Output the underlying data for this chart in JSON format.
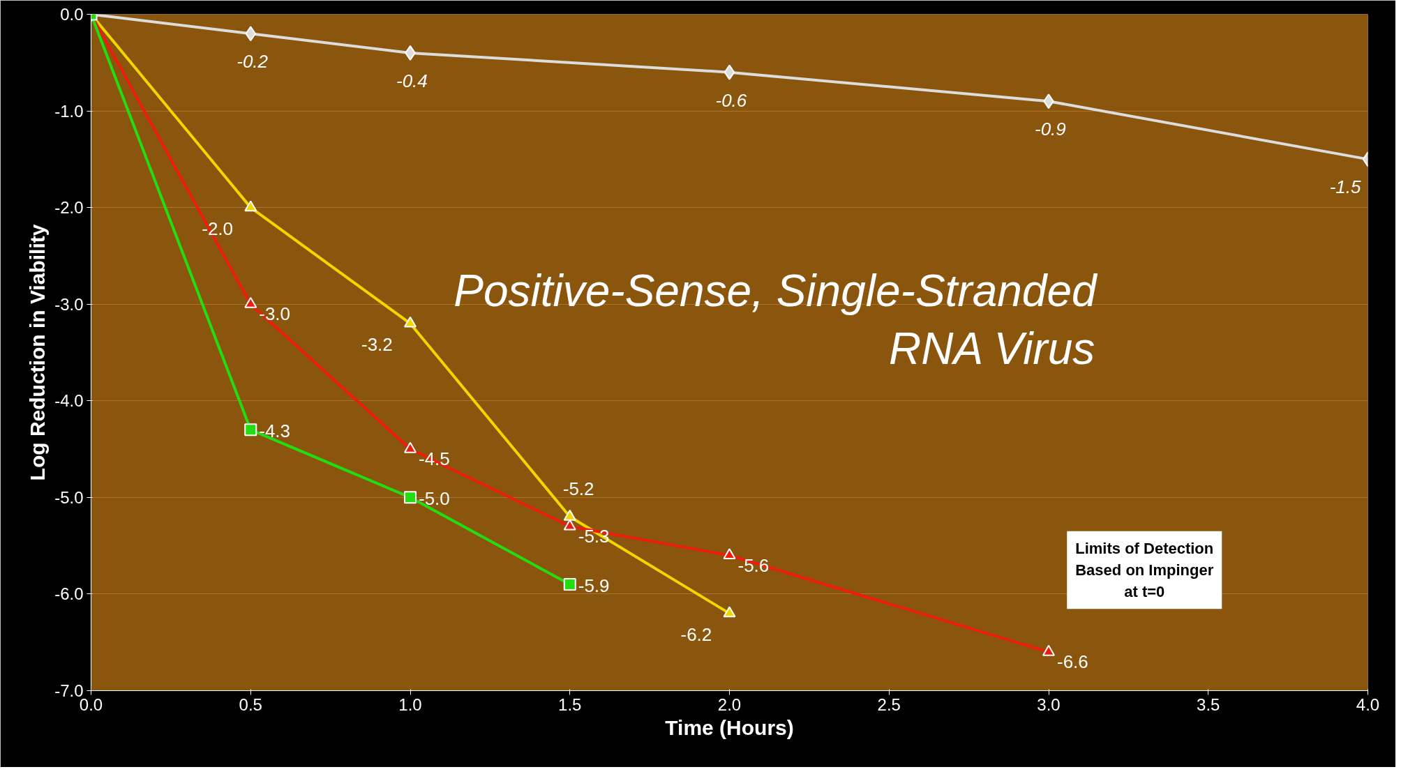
{
  "chart_data": {
    "type": "line",
    "xlabel": "Time (Hours)",
    "ylabel": "Log Reduction in Viability",
    "xlim": [
      0,
      4
    ],
    "ylim": [
      -7,
      0
    ],
    "xticks": [
      {
        "value": 0,
        "label": "0.0"
      },
      {
        "value": 0.5,
        "label": "0.5"
      },
      {
        "value": 1,
        "label": "1.0"
      },
      {
        "value": 1.5,
        "label": "1.5"
      },
      {
        "value": 2,
        "label": "2.0"
      },
      {
        "value": 2.5,
        "label": "2.5"
      },
      {
        "value": 3,
        "label": "3.0"
      },
      {
        "value": 3.5,
        "label": "3.5"
      },
      {
        "value": 4,
        "label": "4.0"
      }
    ],
    "yticks": [
      {
        "value": 0,
        "label": "0.0"
      },
      {
        "value": -1,
        "label": "-1.0"
      },
      {
        "value": -2,
        "label": "-2.0"
      },
      {
        "value": -3,
        "label": "-3.0"
      },
      {
        "value": -4,
        "label": "-4.0"
      },
      {
        "value": -5,
        "label": "-5.0"
      },
      {
        "value": -6,
        "label": "-6.0"
      },
      {
        "value": -7,
        "label": "-7.0"
      }
    ],
    "grid": "y",
    "series": [
      {
        "color": "#dddddd",
        "marker": "diamond",
        "x": [
          0,
          0.5,
          1,
          2,
          3,
          4
        ],
        "values": [
          0,
          -0.2,
          -0.4,
          -0.6,
          -0.9,
          -1.5
        ],
        "value_labels": [
          null,
          "-0.2",
          "-0.4",
          "-0.6",
          "-0.9",
          "-1.5"
        ]
      },
      {
        "color": "#f2d600",
        "marker": "triangle",
        "x": [
          0,
          0.5,
          1,
          1.5,
          2
        ],
        "values": [
          0,
          -2.0,
          -3.2,
          -5.2,
          -6.2
        ],
        "value_labels": [
          null,
          "-2.0",
          "-3.2",
          "-5.2",
          "-6.2"
        ]
      },
      {
        "color": "#ee1c0c",
        "marker": "triangle",
        "x": [
          0,
          0.5,
          1,
          1.5,
          2,
          3
        ],
        "values": [
          0,
          -3.0,
          -4.5,
          -5.3,
          -5.6,
          -6.6
        ],
        "value_labels": [
          null,
          "-3.0",
          "-4.5",
          "-5.3",
          "-5.6",
          "-6.6"
        ]
      },
      {
        "color": "#22dd11",
        "marker": "square",
        "x": [
          0,
          0.5,
          1,
          1.5
        ],
        "values": [
          0,
          -4.3,
          -5.0,
          -5.9
        ],
        "value_labels": [
          null,
          "-4.3",
          "-5.0",
          "-5.9"
        ]
      }
    ],
    "annotations": [
      "Positive-Sense, Single-Stranded\nRNA Virus",
      "Limits of Detection\nBased on Impinger\nat t=0"
    ]
  }
}
